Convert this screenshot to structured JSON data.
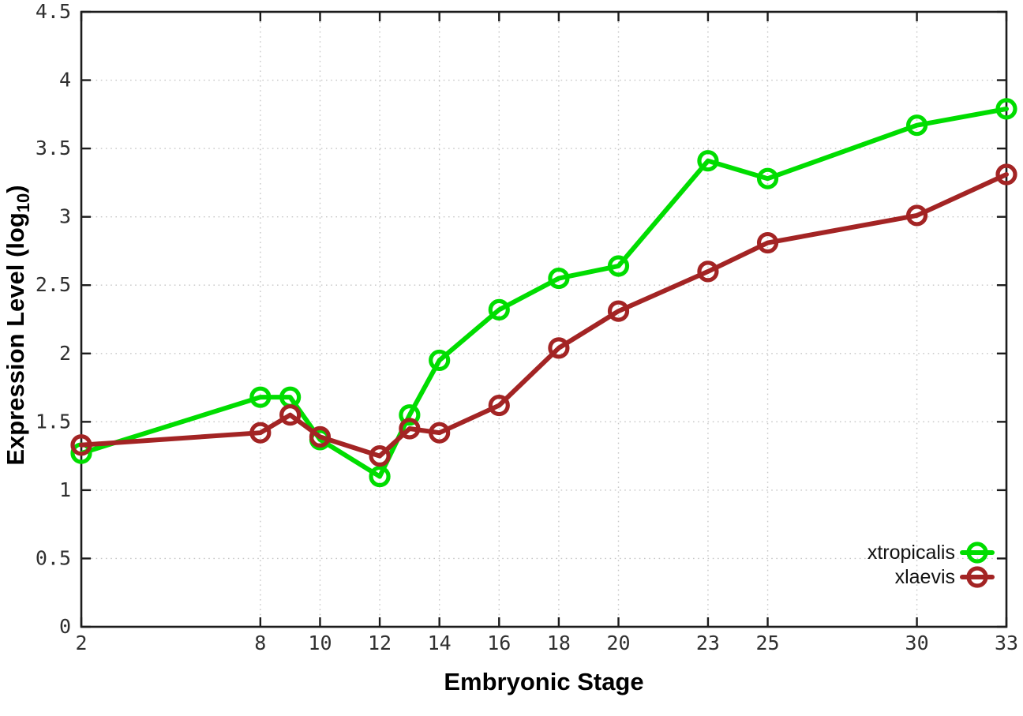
{
  "chart_data": {
    "type": "line",
    "title": "",
    "xlabel": "Embryonic Stage",
    "ylabel": {
      "pre": "Expression Level (log",
      "sub": "10",
      "post": ")"
    },
    "xlim": [
      2,
      33
    ],
    "ylim": [
      0,
      4.5
    ],
    "x_tick_values": [
      2,
      8,
      10,
      12,
      14,
      16,
      18,
      20,
      23,
      25,
      30,
      33
    ],
    "x_tick_labels": [
      "2",
      "8",
      "10",
      "12",
      "14",
      "16",
      "18",
      "20",
      "23",
      "25",
      "30",
      "33"
    ],
    "y_tick_values": [
      0,
      0.5,
      1,
      1.5,
      2,
      2.5,
      3,
      3.5,
      4,
      4.5
    ],
    "y_tick_labels": [
      "0",
      "0.5",
      "1",
      "1.5",
      "2",
      "2.5",
      "3",
      "3.5",
      "4",
      "4.5"
    ],
    "grid": true,
    "legend": {
      "position": "bottom-right",
      "entries": [
        "xtropicalis",
        "xlaevis"
      ]
    },
    "series": [
      {
        "name": "xtropicalis",
        "color": "#00dd00",
        "marker": "open-circle",
        "x": [
          2,
          8,
          9,
          10,
          12,
          13,
          14,
          16,
          18,
          20,
          23,
          25,
          30,
          33
        ],
        "y": [
          1.27,
          1.68,
          1.68,
          1.37,
          1.1,
          1.55,
          1.95,
          2.32,
          2.55,
          2.64,
          3.41,
          3.28,
          3.67,
          3.79
        ]
      },
      {
        "name": "xlaevis",
        "color": "#a32424",
        "marker": "open-circle",
        "x": [
          2,
          8,
          9,
          10,
          12,
          13,
          14,
          16,
          18,
          20,
          23,
          25,
          30,
          33
        ],
        "y": [
          1.33,
          1.42,
          1.55,
          1.39,
          1.25,
          1.45,
          1.42,
          1.62,
          2.04,
          2.31,
          2.6,
          2.81,
          3.01,
          3.31
        ]
      }
    ],
    "colors": {
      "axis": "#1c1c1c",
      "grid": "#c6c6c6",
      "tick_text": "#303030",
      "title_text": "#000000",
      "legend_text": "#111111"
    }
  }
}
